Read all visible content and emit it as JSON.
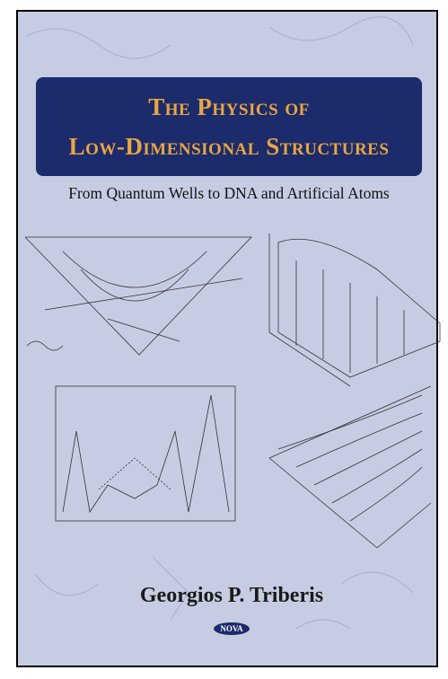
{
  "cover": {
    "title_lines": [
      "The Physics of",
      "Low-Dimensional Structures"
    ],
    "subtitle": "From Quantum Wells to DNA and Artificial Atoms",
    "author": "Georgios P. Triberis",
    "publisher": "NOVA"
  }
}
